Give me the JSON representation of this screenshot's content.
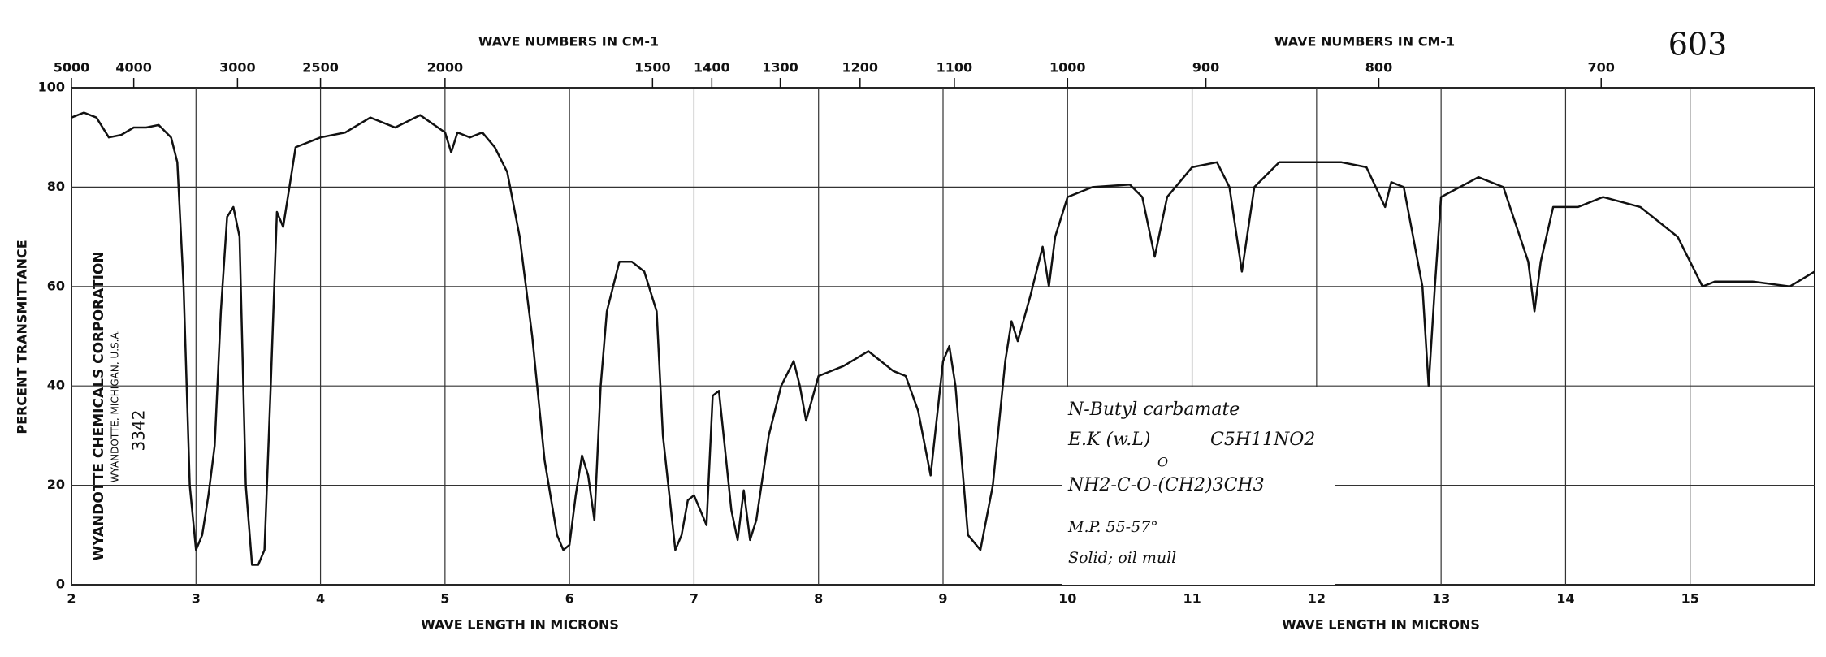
{
  "chart_data": {
    "type": "line",
    "top_axis_label": "WAVE NUMBERS IN CM-1",
    "top_axis_label_right": "WAVE NUMBERS IN CM-1",
    "x_axis_label": "WAVE LENGTH IN MICRONS",
    "x_axis_label_right": "WAVE LENGTH IN MICRONS",
    "y_axis_label": "PERCENT TRANSMITTANCE",
    "page_number": "603",
    "maker": "WYANDOTTE CHEMICALS CORPORATION",
    "maker_address": "WYANDOTTE, MICHIGAN, U.S.A.",
    "sample_number": "3342",
    "annotations": [
      "N-Butyl carbamate",
      "E.K (w.L)",
      "C5H11NO2",
      "O",
      "NH2-C-O-(CH2)3CH3",
      "M.P. 55-57°",
      "Solid; oil mull"
    ],
    "xlim": [
      2,
      16
    ],
    "ylim": [
      0,
      100
    ],
    "xticks": [
      2,
      3,
      4,
      5,
      6,
      7,
      8,
      9,
      10,
      11,
      12,
      13,
      14,
      15
    ],
    "yticks": [
      0,
      20,
      40,
      60,
      80,
      100
    ],
    "x2ticks": [
      5000,
      4000,
      3000,
      2500,
      2000,
      1500,
      1400,
      1300,
      1200,
      1100,
      1000,
      900,
      800,
      700
    ],
    "grid": true,
    "series": [
      {
        "color": "#111",
        "x": [
          2.0,
          2.1,
          2.2,
          2.3,
          2.4,
          2.5,
          2.6,
          2.7,
          2.8,
          2.85,
          2.9,
          2.95,
          3.0,
          3.05,
          3.1,
          3.15,
          3.2,
          3.25,
          3.3,
          3.35,
          3.4,
          3.45,
          3.5,
          3.55,
          3.6,
          3.65,
          3.7,
          3.75,
          3.8,
          4.0,
          4.2,
          4.4,
          4.6,
          4.8,
          5.0,
          5.05,
          5.1,
          5.2,
          5.3,
          5.4,
          5.5,
          5.6,
          5.7,
          5.8,
          5.9,
          5.95,
          6.0,
          6.05,
          6.1,
          6.15,
          6.2,
          6.25,
          6.3,
          6.4,
          6.5,
          6.6,
          6.7,
          6.75,
          6.85,
          6.9,
          6.95,
          7.0,
          7.05,
          7.1,
          7.15,
          7.2,
          7.3,
          7.35,
          7.4,
          7.45,
          7.5,
          7.6,
          7.7,
          7.8,
          7.85,
          7.9,
          8.0,
          8.2,
          8.4,
          8.6,
          8.7,
          8.8,
          8.9,
          9.0,
          9.05,
          9.1,
          9.2,
          9.3,
          9.4,
          9.5,
          9.55,
          9.6,
          9.7,
          9.8,
          9.85,
          9.9,
          10.0,
          10.2,
          10.5,
          10.6,
          10.7,
          10.8,
          11.0,
          11.2,
          11.3,
          11.4,
          11.5,
          11.7,
          12.0,
          12.2,
          12.4,
          12.55,
          12.6,
          12.7,
          12.85,
          12.9,
          12.95,
          13.0,
          13.3,
          13.5,
          13.7,
          13.75,
          13.8,
          13.9,
          14.1,
          14.3,
          14.6,
          14.9,
          15.1,
          15.2,
          15.5,
          15.8,
          16.0
        ],
        "values": [
          94,
          95,
          94,
          90,
          90.5,
          92,
          92,
          92.5,
          90,
          85,
          60,
          20,
          7,
          10,
          18,
          28,
          55,
          74,
          76,
          70,
          20,
          4,
          4,
          7,
          40,
          75,
          72,
          80,
          88,
          90,
          91,
          94,
          92,
          94.5,
          91,
          87,
          91,
          90,
          91,
          88,
          83,
          70,
          50,
          25,
          10,
          7,
          8,
          18,
          26,
          22,
          13,
          40,
          55,
          65,
          65,
          63,
          55,
          30,
          7,
          10,
          17,
          18,
          15,
          12,
          38,
          39,
          15,
          9,
          19,
          9,
          13,
          30,
          40,
          45,
          40,
          33,
          42,
          44,
          47,
          43,
          42,
          35,
          22,
          45,
          48,
          40,
          10,
          7,
          20,
          45,
          53,
          49,
          58,
          68,
          60,
          70,
          78,
          80,
          80.5,
          78,
          66,
          78,
          84,
          85,
          80,
          63,
          80,
          85,
          85,
          85,
          84,
          76,
          81,
          80,
          60,
          40,
          60,
          78,
          82,
          80,
          65,
          55,
          65,
          76,
          76,
          78,
          76,
          70,
          60,
          61,
          61,
          60,
          63
        ]
      }
    ]
  }
}
